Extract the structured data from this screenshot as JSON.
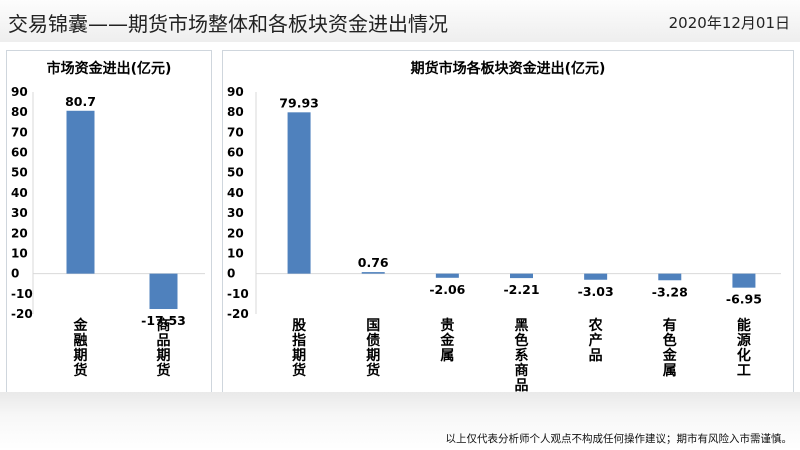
{
  "header": {
    "title": "交易锦囊——期货市场整体和各板块资金进出情况",
    "date": "2020年12月01日"
  },
  "footer": {
    "disclaimer": "以上仅代表分析师个人观点不构成任何操作建议；期市有风险入市需谨慎。"
  },
  "colors": {
    "bar": "#4f81bd",
    "axis": "#d9d9d9"
  },
  "chart_data": [
    {
      "type": "bar",
      "title": "市场资金进出(亿元)",
      "categories": [
        "金融期货",
        "商品期货"
      ],
      "values": [
        80.7,
        -17.53
      ],
      "value_labels": [
        "80.7",
        "-17.53"
      ],
      "ylim": [
        -20,
        90
      ],
      "yticks": [
        -20,
        -10,
        0,
        10,
        20,
        30,
        40,
        50,
        60,
        70,
        80,
        90
      ],
      "grid": false,
      "legend": "none"
    },
    {
      "type": "bar",
      "title": "期货市场各板块资金进出(亿元)",
      "categories": [
        "股指期货",
        "国债期货",
        "贵金属",
        "黑色系商品",
        "农产品",
        "有色金属",
        "能源化工"
      ],
      "values": [
        79.93,
        0.76,
        -2.06,
        -2.21,
        -3.03,
        -3.28,
        -6.95
      ],
      "value_labels": [
        "79.93",
        "0.76",
        "-2.06",
        "-2.21",
        "-3.03",
        "-3.28",
        "-6.95"
      ],
      "ylim": [
        -20,
        90
      ],
      "yticks": [
        -20,
        -10,
        0,
        10,
        20,
        30,
        40,
        50,
        60,
        70,
        80,
        90
      ],
      "grid": false,
      "legend": "none"
    }
  ]
}
